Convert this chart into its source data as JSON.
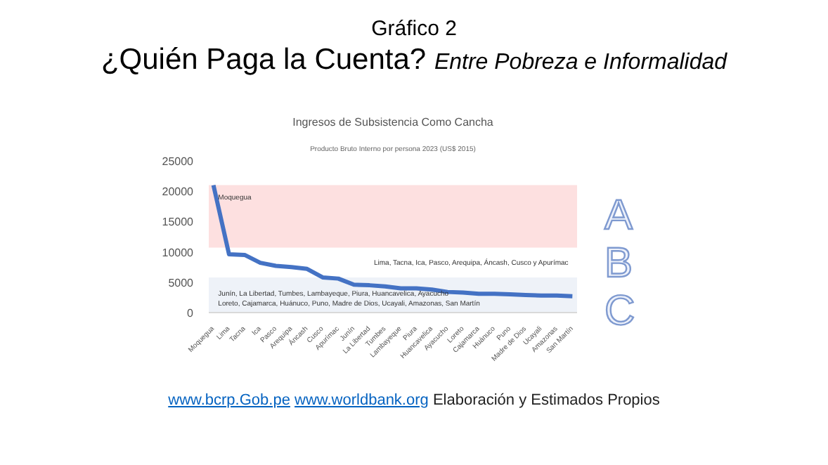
{
  "chart_data": {
    "type": "line",
    "title": "Ingresos de Subsistencia Como Cancha",
    "subtitle": "Producto Bruto Interno por persona 2023 (US$ 2015)",
    "categories": [
      "Moquegua",
      "Lima",
      "Tacna",
      "Ica",
      "Pasco",
      "Arequipa",
      "Áncash",
      "Cusco",
      "Apurímac",
      "Junín",
      "La Libertad",
      "Tumbes",
      "Lambayeque",
      "Piura",
      "Huancavelica",
      "Ayacucho",
      "Loreto",
      "Cajamarca",
      "Huánuco",
      "Puno",
      "Madre de Dios",
      "Ucayali",
      "Amazonas",
      "San Martín"
    ],
    "series": [
      {
        "color": "#4472c4",
        "values": [
          21000,
          9600,
          9500,
          8200,
          7700,
          7500,
          7200,
          5800,
          5600,
          4600,
          4500,
          4300,
          4000,
          4000,
          3800,
          3400,
          3300,
          3100,
          3100,
          3000,
          2900,
          2800,
          2800,
          2700
        ]
      }
    ],
    "ylim": [
      0,
      25000
    ],
    "yticks": [
      0,
      5000,
      10000,
      15000,
      20000,
      25000
    ],
    "grid": false,
    "marker": "none",
    "line_style": "solid",
    "bands": [
      {
        "axis": "y",
        "from": 10700,
        "to": 21000,
        "label": "Moquegua",
        "color": "#fde0e0"
      },
      {
        "axis": "y",
        "from": 0,
        "to": 5800,
        "label": "Junín, La Libertad, Tumbes, Lambayeque, Piura, Huancavelica, Ayacucho\nLoreto, Cajamarca, Huánuco, Puno, Madre de Dios, Ucayali, Amazonas, San Martín",
        "color": "#eef2f8"
      }
    ],
    "annotations": [
      "Gráfico 2",
      "¿Quién Paga la Cuenta?",
      "Entre Pobreza e Informalidad",
      "Lima, Tacna, Ica, Pasco, Arequipa, Áncash, Cusco y Apurímac",
      "A",
      "B",
      "C",
      "www.bcrp.Gob.pe",
      "www.worldbank.org",
      "Elaboración y Estimados Propios"
    ]
  }
}
